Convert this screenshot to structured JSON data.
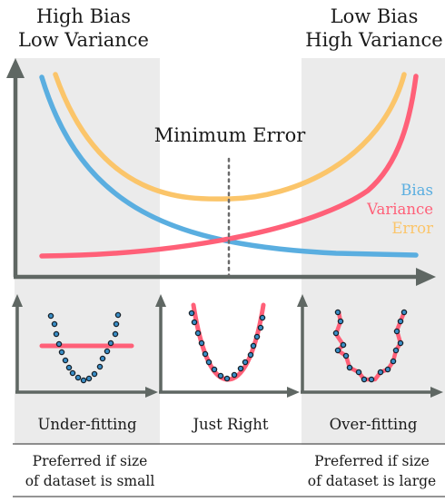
{
  "header": {
    "left": [
      "High Bias",
      "Low Variance"
    ],
    "right": [
      "Low Bias",
      "High Variance"
    ]
  },
  "main_chart": {
    "min_error_label": "Minimum Error",
    "legend": [
      {
        "name": "Bias",
        "color": "#5aaee0"
      },
      {
        "name": "Variance",
        "color": "#ff6078"
      },
      {
        "name": "Error",
        "color": "#fbc56a"
      }
    ]
  },
  "panels": [
    {
      "label": "Under-fitting",
      "fit": "flat line"
    },
    {
      "label": "Just Right",
      "fit": "parabola"
    },
    {
      "label": "Over-fitting",
      "fit": "zigzag through every point"
    }
  ],
  "footer": {
    "left": [
      "Preferred if size",
      "of dataset is small"
    ],
    "right": [
      "Preferred if size",
      "of dataset is large"
    ]
  },
  "colors": {
    "shade": "#ebebeb",
    "axis": "#5f6763",
    "bias": "#5aaee0",
    "variance": "#ff6078",
    "error": "#fbc56a",
    "point_fill": "#3a8fc8",
    "point_stroke": "#15202a"
  }
}
